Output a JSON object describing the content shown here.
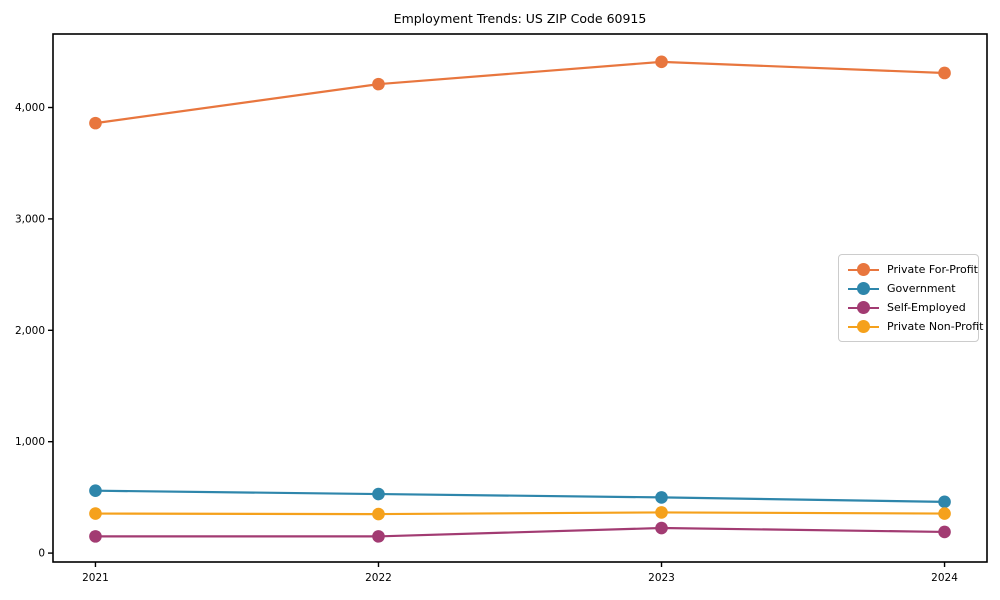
{
  "chart_data": {
    "type": "line",
    "title": "Employment Trends: US ZIP Code 60915",
    "x_categories": [
      "2021",
      "2022",
      "2023",
      "2024"
    ],
    "x_values": [
      2021,
      2022,
      2023,
      2024
    ],
    "series": [
      {
        "name": "Private For-Profit",
        "color": "#E8763E",
        "values": [
          3860,
          4210,
          4410,
          4310
        ]
      },
      {
        "name": "Government",
        "color": "#2E86AB",
        "values": [
          560,
          530,
          500,
          460
        ]
      },
      {
        "name": "Self-Employed",
        "color": "#A23B72",
        "values": [
          150,
          150,
          225,
          190
        ]
      },
      {
        "name": "Private Non-Profit",
        "color": "#F5A11C",
        "values": [
          355,
          350,
          365,
          355
        ]
      }
    ],
    "yticks": {
      "values": [
        0,
        1000,
        2000,
        3000,
        4000
      ],
      "labels": [
        "0",
        "1,000",
        "2,000",
        "3,000",
        "4,000"
      ]
    },
    "xlim": [
      2020.85,
      2024.15
    ],
    "ylim": [
      -80,
      4660
    ],
    "xlabel": "",
    "ylabel": "",
    "grid": false,
    "legend_position": "center right",
    "axis_color": "#000000"
  }
}
